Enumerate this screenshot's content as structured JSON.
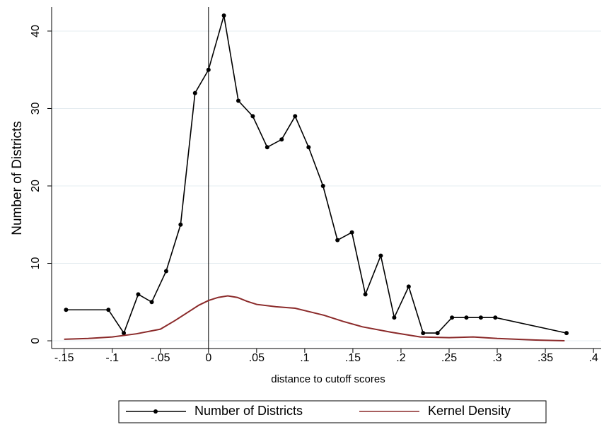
{
  "chart_data": {
    "type": "line",
    "x_label": "distance to cutoff scores",
    "y_label": "Number of Districts",
    "xlim": [
      -0.163,
      0.408
    ],
    "ylim": [
      -1,
      43.1
    ],
    "xticks": [
      {
        "value": -0.15,
        "label": "-.15"
      },
      {
        "value": -0.1,
        "label": "-.1"
      },
      {
        "value": -0.05,
        "label": "-.05"
      },
      0,
      {
        "value": 0.05,
        "label": ".05"
      },
      {
        "value": 0.1,
        "label": ".1"
      },
      {
        "value": 0.15,
        "label": ".15"
      },
      {
        "value": 0.2,
        "label": ".2"
      },
      {
        "value": 0.25,
        "label": ".25"
      },
      {
        "value": 0.3,
        "label": ".3"
      },
      {
        "value": 0.35,
        "label": ".35"
      },
      {
        "value": 0.4,
        "label": ".4"
      }
    ],
    "yticks": [
      0,
      10,
      20,
      30,
      40
    ],
    "grid": true,
    "reference_line_x": 0,
    "legend_position": "bottom",
    "series": [
      {
        "name": "Number of Districts",
        "color": "#000000",
        "markers": true,
        "x": [
          -0.148,
          -0.104,
          -0.088,
          -0.073,
          -0.059,
          -0.044,
          -0.029,
          -0.014,
          0,
          0.016,
          0.031,
          0.046,
          0.061,
          0.076,
          0.09,
          0.104,
          0.119,
          0.134,
          0.149,
          0.163,
          0.179,
          0.193,
          0.208,
          0.223,
          0.238,
          0.253,
          0.268,
          0.283,
          0.298,
          0.372
        ],
        "values": [
          4,
          4,
          1,
          6,
          5,
          9,
          15,
          32,
          35,
          42,
          31,
          29,
          25,
          26,
          29,
          25,
          20,
          13,
          14,
          6,
          11,
          3,
          7,
          1,
          1,
          3,
          3,
          3,
          3,
          1
        ]
      },
      {
        "name": "Kernel Density",
        "color": "#8b2a2a",
        "markers": false,
        "x": [
          -0.15,
          -0.125,
          -0.1,
          -0.075,
          -0.05,
          -0.035,
          -0.02,
          -0.01,
          0,
          0.01,
          0.02,
          0.03,
          0.04,
          0.05,
          0.07,
          0.09,
          0.1,
          0.12,
          0.14,
          0.16,
          0.19,
          0.22,
          0.25,
          0.275,
          0.3,
          0.34,
          0.37
        ],
        "values": [
          0.2,
          0.3,
          0.5,
          0.9,
          1.5,
          2.6,
          3.8,
          4.6,
          5.2,
          5.6,
          5.8,
          5.6,
          5.1,
          4.7,
          4.4,
          4.2,
          3.9,
          3.3,
          2.5,
          1.8,
          1.1,
          0.5,
          0.4,
          0.5,
          0.3,
          0.1,
          0
        ]
      }
    ]
  }
}
